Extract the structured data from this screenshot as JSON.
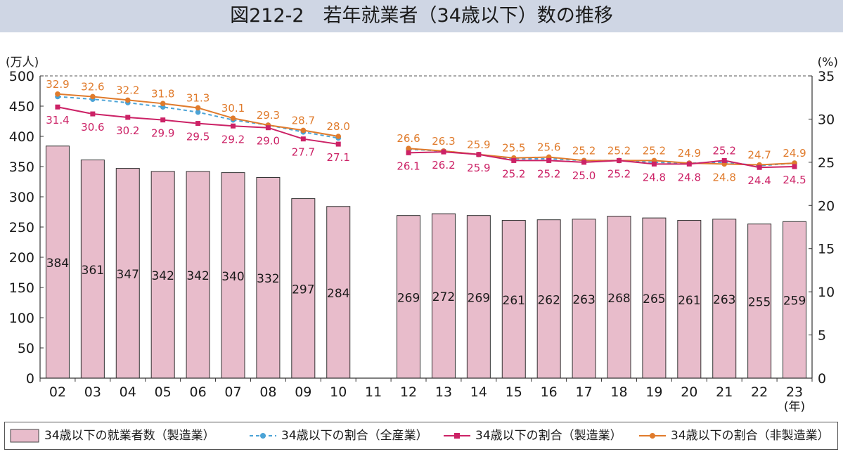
{
  "title": "図212-2　若年就業者（34歳以下）数の推移",
  "chart_data": {
    "type": "bar+line",
    "left_unit": "(万人)",
    "right_unit": "(%)",
    "x_unit": "(年)",
    "categories": [
      "02",
      "03",
      "04",
      "05",
      "06",
      "07",
      "08",
      "09",
      "10",
      "11",
      "12",
      "13",
      "14",
      "15",
      "16",
      "17",
      "18",
      "19",
      "20",
      "21",
      "22",
      "23"
    ],
    "left_ylim": [
      0,
      500
    ],
    "left_ticks": [
      "0",
      "50",
      "100",
      "150",
      "200",
      "250",
      "300",
      "350",
      "400",
      "450",
      "500"
    ],
    "right_ylim": [
      0,
      35
    ],
    "right_ticks": [
      "0",
      "5",
      "10",
      "15",
      "20",
      "25",
      "30",
      "35"
    ],
    "grid": "dashed line at top only",
    "bars": {
      "name": "34歳以下の就業者数（製造業）",
      "color": "#e8bccb",
      "values": [
        384,
        361,
        347,
        342,
        342,
        340,
        332,
        297,
        284,
        null,
        269,
        272,
        269,
        261,
        262,
        263,
        268,
        265,
        261,
        263,
        255,
        259
      ]
    },
    "series": [
      {
        "name": "34歳以下の割合（全産業）",
        "color": "#4ba3d6",
        "style": "dashed",
        "values": [
          32.6,
          32.3,
          31.9,
          31.4,
          30.8,
          29.9,
          29.3,
          28.5,
          27.8,
          null,
          26.5,
          26.3,
          25.9,
          25.4,
          25.4,
          25.2,
          25.2,
          25.0,
          24.9,
          25.0,
          24.6,
          24.9
        ]
      },
      {
        "name": "34歳以下の割合（製造業）",
        "color": "#cc2266",
        "style": "solid",
        "values": [
          31.4,
          30.6,
          30.2,
          29.9,
          29.5,
          29.2,
          29.0,
          27.7,
          27.1,
          null,
          26.1,
          26.2,
          25.9,
          25.2,
          25.2,
          25.0,
          25.2,
          24.8,
          24.8,
          25.2,
          24.4,
          24.5
        ],
        "labels": [
          "31.4",
          "30.6",
          "30.2",
          "29.9",
          "29.5",
          "29.2",
          "29.0",
          "27.7",
          "27.1",
          null,
          "26.1",
          "26.2",
          "25.9",
          "25.2",
          "25.2",
          "25.0",
          "25.2",
          "24.8",
          "24.8",
          "25.2",
          "24.4",
          "24.5"
        ]
      },
      {
        "name": "34歳以下の割合（非製造業）",
        "color": "#e07b2c",
        "style": "solid",
        "values": [
          32.9,
          32.6,
          32.2,
          31.8,
          31.3,
          30.1,
          29.3,
          28.7,
          28.0,
          null,
          26.6,
          26.3,
          25.9,
          25.5,
          25.6,
          25.2,
          25.2,
          25.2,
          24.9,
          24.8,
          24.7,
          24.9
        ],
        "labels": [
          "32.9",
          "32.6",
          "32.2",
          "31.8",
          "31.3",
          "30.1",
          "29.3",
          "28.7",
          "28.0",
          null,
          "26.6",
          "26.3",
          "25.9",
          "25.5",
          "25.6",
          "25.2",
          "25.2",
          "25.2",
          "24.9",
          "24.8",
          "24.7",
          "24.9"
        ]
      }
    ]
  }
}
